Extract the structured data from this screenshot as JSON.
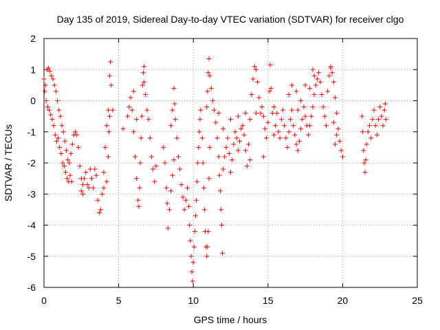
{
  "chart_data": {
    "type": "scatter",
    "title": "Day 135 of 2019, Sidereal Day-to-day VTEC variation (SDTVAR) for receiver clgo",
    "xlabel": "GPS time / hours",
    "ylabel": "SDTVAR / TECUs",
    "xlim": [
      0,
      25
    ],
    "ylim": [
      -6,
      2
    ],
    "xticks": [
      0,
      5,
      10,
      15,
      20,
      25
    ],
    "yticks": [
      2,
      1,
      0,
      -1,
      -2,
      -3,
      -4,
      -5,
      -6
    ],
    "xtick_labels": [
      "0",
      "5",
      "10",
      "15",
      "20",
      "25"
    ],
    "ytick_labels": [
      "2",
      "1",
      "0",
      "-1",
      "-2",
      "-3",
      "-4",
      "-5",
      "-6"
    ],
    "grid": true,
    "marker": "+",
    "series": [
      {
        "name": "SDTVAR",
        "color": "#ff0000",
        "points": [
          [
            0.0,
            0.7
          ],
          [
            0.1,
            0.5
          ],
          [
            0.2,
            1.0
          ],
          [
            0.3,
            1.05
          ],
          [
            0.4,
            0.95
          ],
          [
            0.5,
            0.8
          ],
          [
            0.6,
            0.7
          ],
          [
            0.7,
            0.5
          ],
          [
            0.8,
            0.3
          ],
          [
            0.9,
            0.0
          ],
          [
            1.0,
            -0.3
          ],
          [
            1.1,
            -0.5
          ],
          [
            1.2,
            -0.8
          ],
          [
            1.3,
            -1.0
          ],
          [
            1.4,
            -1.3
          ],
          [
            1.5,
            -1.6
          ],
          [
            1.6,
            -1.9
          ],
          [
            1.7,
            -2.0
          ],
          [
            1.8,
            -1.7
          ],
          [
            1.9,
            -1.4
          ],
          [
            2.0,
            -1.1
          ],
          [
            2.1,
            -1.0
          ],
          [
            2.2,
            -1.1
          ],
          [
            2.3,
            -1.5
          ],
          [
            2.4,
            -2.1
          ],
          [
            2.5,
            -2.5
          ],
          [
            2.6,
            -2.7
          ],
          [
            2.7,
            -2.5
          ],
          [
            2.8,
            -2.3
          ],
          [
            3.0,
            -2.8
          ],
          [
            3.2,
            -2.5
          ],
          [
            3.4,
            -2.2
          ],
          [
            3.6,
            -3.2
          ],
          [
            3.7,
            -3.6
          ],
          [
            3.8,
            -3.5
          ],
          [
            3.9,
            -3.0
          ],
          [
            4.0,
            -2.3
          ],
          [
            4.1,
            -1.5
          ],
          [
            4.2,
            -0.8
          ],
          [
            4.3,
            -0.3
          ],
          [
            4.4,
            0.8
          ],
          [
            4.45,
            1.25
          ],
          [
            4.5,
            0.5
          ],
          [
            4.6,
            -0.3
          ],
          [
            0.05,
            0.3
          ],
          [
            0.15,
            0.0
          ],
          [
            0.25,
            -0.2
          ],
          [
            0.35,
            -0.3
          ],
          [
            0.45,
            -0.45
          ],
          [
            0.55,
            -0.6
          ],
          [
            0.65,
            -0.8
          ],
          [
            0.75,
            -1.1
          ],
          [
            0.85,
            -1.3
          ],
          [
            0.95,
            -1.2
          ],
          [
            1.05,
            -1.5
          ],
          [
            1.15,
            -1.7
          ],
          [
            1.25,
            -2.0
          ],
          [
            1.35,
            -2.1
          ],
          [
            1.45,
            -2.3
          ],
          [
            1.55,
            -2.5
          ],
          [
            1.65,
            -2.6
          ],
          [
            1.75,
            -2.4
          ],
          [
            1.85,
            -2.6
          ],
          [
            2.5,
            -2.9
          ],
          [
            2.6,
            -3.0
          ],
          [
            2.9,
            -2.7
          ],
          [
            3.1,
            -2.2
          ],
          [
            3.3,
            -2.8
          ],
          [
            3.5,
            -2.4
          ],
          [
            4.0,
            -2.8
          ],
          [
            4.2,
            -2.6
          ],
          [
            4.3,
            -1.8
          ],
          [
            4.35,
            -1.0
          ],
          [
            4.4,
            -0.5
          ],
          [
            5.6,
            -0.5
          ],
          [
            5.7,
            -0.2
          ],
          [
            5.8,
            0.1
          ],
          [
            5.9,
            -0.3
          ],
          [
            6.0,
            -1.0
          ],
          [
            6.1,
            -1.8
          ],
          [
            6.2,
            -2.5
          ],
          [
            6.3,
            -3.2
          ],
          [
            6.35,
            -3.4
          ],
          [
            6.4,
            -2.8
          ],
          [
            6.45,
            -2.0
          ],
          [
            6.5,
            -1.2
          ],
          [
            6.55,
            -0.5
          ],
          [
            6.6,
            0.5
          ],
          [
            6.65,
            0.9
          ],
          [
            6.7,
            0.6
          ],
          [
            6.8,
            0.2
          ],
          [
            6.9,
            -0.3
          ],
          [
            7.0,
            -0.6
          ],
          [
            7.1,
            -1.2
          ],
          [
            7.2,
            -1.8
          ],
          [
            7.3,
            -2.2
          ],
          [
            7.4,
            -2.6
          ],
          [
            7.5,
            -2.1
          ],
          [
            5.3,
            -0.9
          ],
          [
            6.0,
            0.3
          ],
          [
            6.2,
            -0.6
          ],
          [
            6.7,
            1.1
          ],
          [
            8.0,
            -1.5
          ],
          [
            8.1,
            -2.0
          ],
          [
            8.2,
            -2.8
          ],
          [
            8.25,
            -3.3
          ],
          [
            8.3,
            -4.1
          ],
          [
            8.4,
            -3.5
          ],
          [
            8.5,
            -2.9
          ],
          [
            8.6,
            -2.4
          ],
          [
            8.7,
            -1.9
          ],
          [
            8.5,
            -0.8
          ],
          [
            8.6,
            -0.3
          ],
          [
            8.7,
            0.4
          ],
          [
            8.75,
            -0.1
          ],
          [
            8.8,
            -0.6
          ],
          [
            8.9,
            -1.2
          ],
          [
            9.0,
            -1.8
          ],
          [
            9.1,
            -2.2
          ],
          [
            9.2,
            -2.7
          ],
          [
            9.3,
            -3.1
          ],
          [
            9.4,
            -3.5
          ],
          [
            9.5,
            -3.2
          ],
          [
            9.6,
            -2.8
          ],
          [
            9.7,
            -3.4
          ],
          [
            9.75,
            -4.0
          ],
          [
            9.8,
            -4.5
          ],
          [
            9.85,
            -5.0
          ],
          [
            9.9,
            -5.5
          ],
          [
            9.95,
            -5.8
          ],
          [
            10.0,
            -5.2
          ],
          [
            10.05,
            -4.7
          ],
          [
            10.1,
            -4.2
          ],
          [
            10.15,
            -3.7
          ],
          [
            10.2,
            -3.2
          ],
          [
            10.25,
            -2.6
          ],
          [
            10.3,
            -2.0
          ],
          [
            10.35,
            -1.5
          ],
          [
            10.4,
            -1.0
          ],
          [
            10.45,
            -0.6
          ],
          [
            10.5,
            -0.3
          ],
          [
            10.6,
            -1.2
          ],
          [
            10.65,
            -2.0
          ],
          [
            10.7,
            -2.8
          ],
          [
            10.75,
            -3.5
          ],
          [
            10.8,
            -4.2
          ],
          [
            10.85,
            -4.7
          ],
          [
            10.9,
            -5.0
          ],
          [
            10.95,
            -4.7
          ],
          [
            11.0,
            -4.2
          ],
          [
            11.05,
            -2.5
          ],
          [
            11.1,
            -1.5
          ],
          [
            10.9,
            -0.2
          ],
          [
            10.95,
            0.3
          ],
          [
            11.0,
            0.9
          ],
          [
            11.05,
            1.35
          ],
          [
            11.1,
            0.8
          ],
          [
            11.2,
            0.4
          ],
          [
            11.3,
            0.0
          ],
          [
            11.4,
            -0.3
          ],
          [
            11.5,
            -0.7
          ],
          [
            11.6,
            -1.2
          ],
          [
            11.7,
            -1.8
          ],
          [
            11.75,
            -2.4
          ],
          [
            11.8,
            -2.9
          ],
          [
            11.85,
            -3.5
          ],
          [
            11.9,
            -4.0
          ],
          [
            11.95,
            -4.9
          ],
          [
            12.0,
            -2.2
          ],
          [
            12.1,
            -1.8
          ],
          [
            12.2,
            -1.5
          ],
          [
            12.3,
            -1.2
          ],
          [
            12.4,
            -1.7
          ],
          [
            12.5,
            -2.3
          ],
          [
            12.6,
            -1.9
          ],
          [
            12.7,
            -1.4
          ],
          [
            12.8,
            -1.0
          ],
          [
            12.9,
            -1.2
          ],
          [
            13.0,
            -1.6
          ],
          [
            13.1,
            -1.3
          ],
          [
            13.2,
            -0.9
          ],
          [
            13.3,
            -0.8
          ],
          [
            13.4,
            -1.1
          ],
          [
            13.5,
            -1.6
          ],
          [
            13.6,
            -2.1
          ],
          [
            13.7,
            -1.4
          ],
          [
            13.8,
            -0.6
          ],
          [
            13.9,
            0.2
          ],
          [
            14.0,
            0.7
          ],
          [
            14.1,
            1.1
          ],
          [
            14.2,
            1.0
          ],
          [
            14.3,
            0.6
          ],
          [
            14.4,
            0.1
          ],
          [
            14.5,
            -0.4
          ],
          [
            14.6,
            -0.2
          ],
          [
            14.7,
            -0.5
          ],
          [
            14.8,
            -0.9
          ],
          [
            14.9,
            -1.2
          ],
          [
            15.0,
            -0.7
          ],
          [
            15.1,
            0.3
          ],
          [
            15.15,
            1.15
          ],
          [
            15.2,
            0.4
          ],
          [
            15.3,
            -0.4
          ],
          [
            15.4,
            -1.1
          ],
          [
            15.5,
            -0.8
          ],
          [
            15.6,
            -0.4
          ],
          [
            15.7,
            -1.0
          ],
          [
            15.8,
            -1.2
          ],
          [
            15.9,
            -0.6
          ],
          [
            16.0,
            -0.3
          ],
          [
            16.1,
            -0.8
          ],
          [
            16.2,
            -1.2
          ],
          [
            16.3,
            -1.5
          ],
          [
            16.4,
            -1.0
          ],
          [
            16.5,
            -0.6
          ],
          [
            16.6,
            -0.3
          ],
          [
            16.7,
            -0.8
          ],
          [
            16.8,
            -1.1
          ],
          [
            16.9,
            -1.4
          ],
          [
            17.0,
            -1.6
          ],
          [
            17.1,
            -1.3
          ],
          [
            17.2,
            -0.9
          ],
          [
            17.3,
            -0.6
          ],
          [
            17.4,
            -0.2
          ],
          [
            17.5,
            -0.5
          ],
          [
            17.6,
            -0.8
          ],
          [
            17.7,
            -1.1
          ],
          [
            17.8,
            -0.8
          ],
          [
            17.9,
            -0.5
          ],
          [
            18.0,
            -0.2
          ],
          [
            18.1,
            0.2
          ],
          [
            18.2,
            0.5
          ],
          [
            18.3,
            0.7
          ],
          [
            18.4,
            0.9
          ],
          [
            18.5,
            0.6
          ],
          [
            18.6,
            0.2
          ],
          [
            18.7,
            -0.2
          ],
          [
            18.8,
            -0.5
          ],
          [
            18.9,
            -0.8
          ],
          [
            19.0,
            0.3
          ],
          [
            19.1,
            0.8
          ],
          [
            19.2,
            1.05
          ],
          [
            19.3,
            0.9
          ],
          [
            19.4,
            0.6
          ],
          [
            19.5,
            0.1
          ],
          [
            19.6,
            -0.4
          ],
          [
            19.7,
            -0.9
          ],
          [
            19.8,
            -1.3
          ],
          [
            19.9,
            -1.6
          ],
          [
            20.0,
            -1.8
          ],
          [
            19.4,
            -0.7
          ],
          [
            19.5,
            -1.4
          ],
          [
            19.6,
            -1.1
          ],
          [
            16.4,
            0.2
          ],
          [
            16.6,
            0.5
          ],
          [
            16.9,
            0.3
          ],
          [
            17.2,
            0.0
          ],
          [
            17.5,
            0.5
          ],
          [
            17.8,
            0.4
          ],
          [
            18.1,
            0.8
          ],
          [
            13.5,
            -0.4
          ],
          [
            13.8,
            -1.9
          ],
          [
            14.2,
            -0.4
          ],
          [
            14.7,
            -1.8
          ],
          [
            15.4,
            -0.2
          ],
          [
            12.5,
            -0.6
          ],
          [
            12.0,
            -0.9
          ],
          [
            11.7,
            -0.4
          ],
          [
            13.0,
            -0.5
          ],
          [
            17.0,
            -0.3
          ],
          [
            18.0,
            1.0
          ],
          [
            19.2,
            1.1
          ],
          [
            21.3,
            -0.5
          ],
          [
            21.35,
            -1.0
          ],
          [
            21.4,
            -1.6
          ],
          [
            21.45,
            -2.0
          ],
          [
            21.5,
            -2.3
          ],
          [
            21.55,
            -1.9
          ],
          [
            21.6,
            -1.4
          ],
          [
            21.7,
            -1.0
          ],
          [
            21.8,
            -0.8
          ],
          [
            21.9,
            -1.2
          ],
          [
            22.0,
            -0.6
          ],
          [
            22.1,
            -0.3
          ],
          [
            22.2,
            -0.8
          ],
          [
            22.3,
            -1.1
          ],
          [
            22.4,
            -0.6
          ],
          [
            22.5,
            -0.2
          ],
          [
            22.6,
            -0.5
          ],
          [
            22.7,
            -0.8
          ],
          [
            22.8,
            -0.3
          ],
          [
            22.85,
            -0.1
          ],
          [
            22.9,
            -0.6
          ]
        ]
      }
    ]
  }
}
